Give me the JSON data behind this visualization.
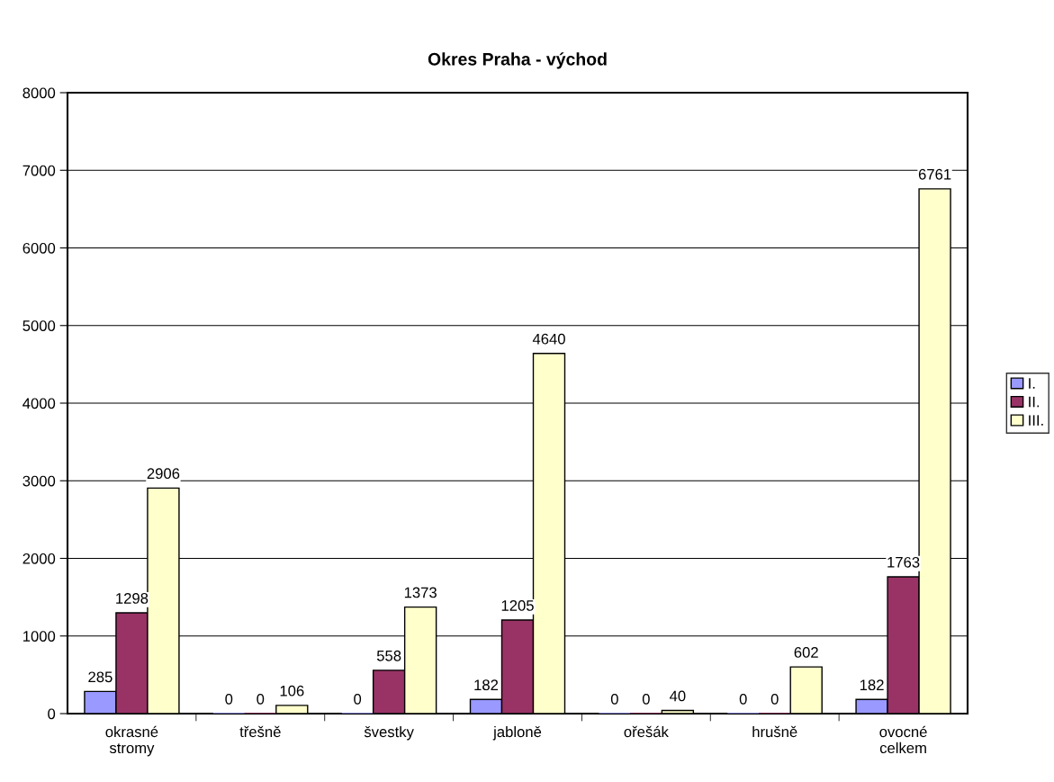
{
  "chart_data": {
    "type": "bar",
    "title": "Okres Praha - východ",
    "categories": [
      "okrasné stromy",
      "třešně",
      "švestky",
      "jabloně",
      "ořešák",
      "hrušně",
      "ovocné celkem"
    ],
    "series": [
      {
        "name": "I.",
        "color": "#9999ff",
        "values": [
          285,
          0,
          0,
          182,
          0,
          0,
          182
        ]
      },
      {
        "name": "II.",
        "color": "#993366",
        "values": [
          1298,
          0,
          558,
          1205,
          0,
          0,
          1763
        ]
      },
      {
        "name": "III.",
        "color": "#ffffcc",
        "values": [
          2906,
          106,
          1373,
          4640,
          40,
          602,
          6761
        ]
      }
    ],
    "ylim": [
      0,
      8000
    ],
    "yticks": [
      0,
      1000,
      2000,
      3000,
      4000,
      5000,
      6000,
      7000,
      8000
    ],
    "grid": "y",
    "legend": "right",
    "data_labels": true
  }
}
